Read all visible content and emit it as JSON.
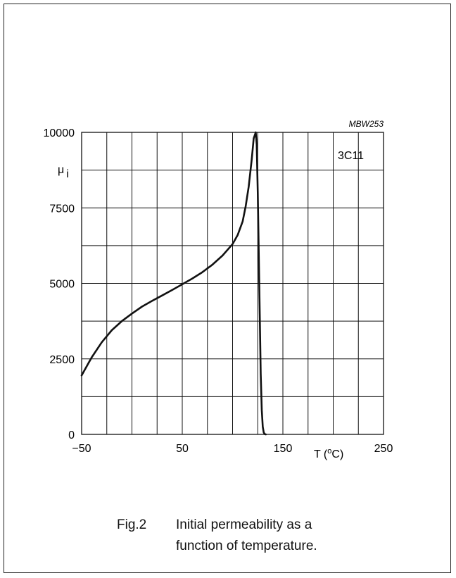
{
  "chart_data": {
    "type": "line",
    "code": "MBW253",
    "material": "3C11",
    "ylabel": {
      "main": "μ",
      "sub": "i"
    },
    "xlabel": {
      "prefix": "T  (",
      "sup": "o",
      "suffix": "C)"
    },
    "xlim": [
      -50,
      250
    ],
    "ylim": [
      0,
      10000
    ],
    "x_ticks": [
      "−50",
      "50",
      "150",
      "250"
    ],
    "x_tick_values": [
      -50,
      50,
      150,
      250
    ],
    "y_ticks": [
      "0",
      "2500",
      "5000",
      "7500",
      "10000"
    ],
    "y_tick_values": [
      0,
      2500,
      5000,
      7500,
      10000
    ],
    "grid": true,
    "x_grid_step": 25,
    "y_grid_step": 1250,
    "series": [
      {
        "x": [
          -50,
          -40,
          -30,
          -20,
          -10,
          0,
          10,
          20,
          30,
          40,
          50,
          60,
          70,
          80,
          90,
          100,
          105,
          110,
          113,
          116,
          119,
          121,
          123,
          124,
          125,
          126,
          127,
          128,
          129,
          130,
          131,
          132,
          133
        ],
        "y": [
          1950,
          2550,
          3050,
          3450,
          3750,
          4000,
          4230,
          4420,
          4600,
          4780,
          4970,
          5160,
          5370,
          5620,
          5920,
          6300,
          6600,
          7050,
          7550,
          8200,
          9100,
          9800,
          10000,
          9600,
          8000,
          6000,
          4000,
          2000,
          800,
          250,
          60,
          10,
          0
        ]
      }
    ]
  },
  "caption": {
    "number": "Fig.2",
    "line1": "Initial permeability as a",
    "line2": "function of temperature."
  }
}
